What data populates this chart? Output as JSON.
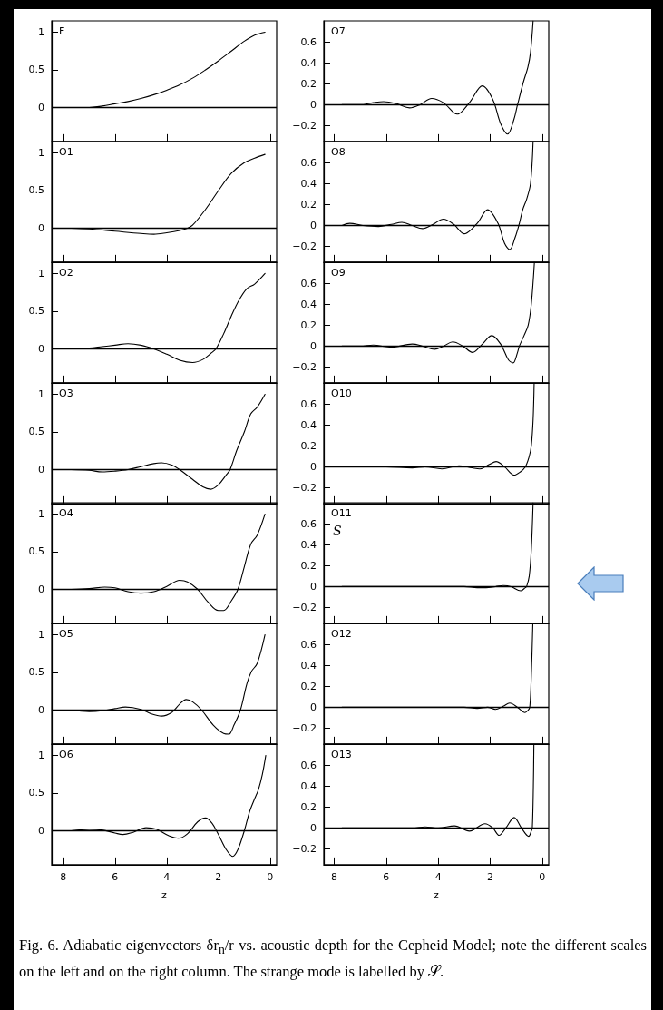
{
  "chart_data": [
    {
      "type": "line",
      "title": "F",
      "xlim": [
        8.45,
        -0.25
      ],
      "xticks": [
        8,
        6,
        4,
        2,
        0
      ],
      "ylim": [
        -0.45,
        1.15
      ],
      "yticks": [
        0,
        0.5,
        1
      ],
      "tick_labels": "y",
      "marker": "none",
      "line_style": "solid",
      "ref_lines": [
        {
          "axis": "y",
          "value": 0,
          "color": "#000000"
        }
      ],
      "series": [
        {
          "color": "#000000",
          "x": [
            7.7,
            7,
            6.5,
            6,
            5.5,
            5,
            4.5,
            4,
            3.5,
            3,
            2.5,
            2,
            1.5,
            1,
            0.6,
            0.2
          ],
          "values": [
            0,
            0,
            0.02,
            0.05,
            0.08,
            0.12,
            0.17,
            0.23,
            0.3,
            0.39,
            0.5,
            0.62,
            0.75,
            0.88,
            0.96,
            1.0
          ]
        }
      ]
    },
    {
      "type": "line",
      "title": "O1",
      "xlim": [
        8.45,
        -0.25
      ],
      "xticks": [
        8,
        6,
        4,
        2,
        0
      ],
      "ylim": [
        -0.45,
        1.15
      ],
      "yticks": [
        0,
        0.5,
        1
      ],
      "tick_labels": "y",
      "marker": "none",
      "line_style": "solid",
      "ref_lines": [
        {
          "axis": "y",
          "value": 0,
          "color": "#000000"
        }
      ],
      "series": [
        {
          "color": "#000000",
          "x": [
            7.7,
            7,
            6,
            5,
            4.5,
            4,
            3.5,
            3.2,
            3,
            2.5,
            2,
            1.5,
            1,
            0.6,
            0.2
          ],
          "values": [
            0,
            -0.01,
            -0.04,
            -0.07,
            -0.08,
            -0.06,
            -0.03,
            0,
            0.04,
            0.25,
            0.5,
            0.73,
            0.87,
            0.93,
            0.98
          ]
        }
      ]
    },
    {
      "type": "line",
      "title": "O2",
      "xlim": [
        8.45,
        -0.25
      ],
      "xticks": [
        8,
        6,
        4,
        2,
        0
      ],
      "ylim": [
        -0.45,
        1.15
      ],
      "yticks": [
        0,
        0.5,
        1
      ],
      "tick_labels": "y",
      "marker": "none",
      "line_style": "solid",
      "ref_lines": [
        {
          "axis": "y",
          "value": 0,
          "color": "#000000"
        }
      ],
      "series": [
        {
          "color": "#000000",
          "x": [
            7.7,
            7,
            6.5,
            6,
            5.5,
            5,
            4.5,
            4,
            3.5,
            3,
            2.6,
            2.3,
            2.1,
            1.8,
            1.5,
            1.2,
            0.9,
            0.6,
            0.2
          ],
          "values": [
            0,
            0.01,
            0.03,
            0.05,
            0.07,
            0.05,
            0,
            -0.07,
            -0.15,
            -0.18,
            -0.14,
            -0.06,
            0,
            0.2,
            0.44,
            0.65,
            0.8,
            0.86,
            1.0
          ]
        }
      ]
    },
    {
      "type": "line",
      "title": "O3",
      "xlim": [
        8.45,
        -0.25
      ],
      "xticks": [
        8,
        6,
        4,
        2,
        0
      ],
      "ylim": [
        -0.45,
        1.15
      ],
      "yticks": [
        0,
        0.5,
        1
      ],
      "tick_labels": "y",
      "marker": "none",
      "line_style": "solid",
      "ref_lines": [
        {
          "axis": "y",
          "value": 0,
          "color": "#000000"
        }
      ],
      "series": [
        {
          "color": "#000000",
          "x": [
            7.7,
            7,
            6.5,
            6,
            5.5,
            5,
            4.5,
            4.2,
            3.8,
            3.5,
            3,
            2.6,
            2.3,
            2,
            1.7,
            1.55,
            1.3,
            1,
            0.75,
            0.5,
            0.2
          ],
          "values": [
            0,
            -0.01,
            -0.03,
            -0.02,
            0,
            0.04,
            0.08,
            0.09,
            0.06,
            0,
            -0.13,
            -0.23,
            -0.26,
            -0.2,
            -0.07,
            0,
            0.25,
            0.5,
            0.74,
            0.83,
            1.0
          ]
        }
      ]
    },
    {
      "type": "line",
      "title": "O4",
      "xlim": [
        8.45,
        -0.25
      ],
      "xticks": [
        8,
        6,
        4,
        2,
        0
      ],
      "ylim": [
        -0.45,
        1.15
      ],
      "yticks": [
        0,
        0.5,
        1
      ],
      "tick_labels": "y",
      "marker": "none",
      "line_style": "solid",
      "ref_lines": [
        {
          "axis": "y",
          "value": 0,
          "color": "#000000"
        }
      ],
      "series": [
        {
          "color": "#000000",
          "x": [
            7.7,
            7,
            6.4,
            6,
            5.5,
            5,
            4.5,
            4,
            3.5,
            3.2,
            2.8,
            2.4,
            2,
            1.8,
            1.5,
            1.25,
            1,
            0.75,
            0.5,
            0.2
          ],
          "values": [
            0,
            0.01,
            0.03,
            0.02,
            -0.03,
            -0.05,
            -0.03,
            0.04,
            0.12,
            0.1,
            0,
            -0.17,
            -0.28,
            -0.28,
            -0.15,
            0,
            0.3,
            0.6,
            0.72,
            1.0
          ]
        }
      ]
    },
    {
      "type": "line",
      "title": "O5",
      "xlim": [
        8.45,
        -0.25
      ],
      "xticks": [
        8,
        6,
        4,
        2,
        0
      ],
      "ylim": [
        -0.45,
        1.15
      ],
      "yticks": [
        0,
        0.5,
        1
      ],
      "tick_labels": "y",
      "marker": "none",
      "line_style": "solid",
      "ref_lines": [
        {
          "axis": "y",
          "value": 0,
          "color": "#000000"
        }
      ],
      "series": [
        {
          "color": "#000000",
          "x": [
            7.7,
            7,
            6.5,
            6,
            5.6,
            5,
            4.6,
            4.2,
            3.8,
            3.5,
            3.25,
            3,
            2.65,
            2.2,
            1.8,
            1.6,
            1.4,
            1.15,
            0.9,
            0.73,
            0.5,
            0.2
          ],
          "values": [
            0,
            -0.02,
            -0.01,
            0.02,
            0.04,
            0.01,
            -0.05,
            -0.08,
            -0.03,
            0.08,
            0.14,
            0.11,
            0,
            -0.2,
            -0.31,
            -0.32,
            -0.2,
            0,
            0.35,
            0.51,
            0.62,
            1.0
          ]
        }
      ]
    },
    {
      "type": "line",
      "title": "O6",
      "xlabel": "z",
      "xlim": [
        8.45,
        -0.25
      ],
      "xticks": [
        8,
        6,
        4,
        2,
        0
      ],
      "ylim": [
        -0.45,
        1.15
      ],
      "yticks": [
        0,
        0.5,
        1
      ],
      "marker": "none",
      "line_style": "solid",
      "ref_lines": [
        {
          "axis": "y",
          "value": 0,
          "color": "#000000"
        }
      ],
      "series": [
        {
          "color": "#000000",
          "x": [
            7.7,
            7,
            6.5,
            6,
            5.7,
            5.3,
            4.8,
            4.4,
            3.9,
            3.55,
            3.2,
            2.8,
            2.5,
            2.25,
            2,
            1.7,
            1.45,
            1.25,
            1,
            0.8,
            0.63,
            0.45,
            0.3,
            0.17
          ],
          "values": [
            0,
            0.02,
            0.01,
            -0.03,
            -0.05,
            -0.02,
            0.04,
            0.02,
            -0.07,
            -0.1,
            -0.04,
            0.12,
            0.17,
            0.1,
            -0.05,
            -0.25,
            -0.34,
            -0.25,
            0,
            0.25,
            0.4,
            0.55,
            0.75,
            1.0
          ]
        }
      ]
    },
    {
      "type": "line",
      "title": "O7",
      "xlim": [
        8.4,
        -0.25
      ],
      "xticks": [
        8,
        6,
        4,
        2,
        0
      ],
      "ylim": [
        -0.35,
        0.8
      ],
      "yticks": [
        -0.2,
        0,
        0.2,
        0.4,
        0.6
      ],
      "tick_labels": "y",
      "marker": "none",
      "line_style": "solid",
      "ref_lines": [
        {
          "axis": "y",
          "value": 0,
          "color": "#000000"
        }
      ],
      "series": [
        {
          "color": "#000000",
          "x": [
            7.7,
            7,
            6.5,
            6.1,
            5.6,
            5.1,
            4.7,
            4.25,
            3.8,
            3.27,
            2.8,
            2.3,
            1.9,
            1.6,
            1.33,
            1.1,
            0.95,
            0.72,
            0.55,
            0.45,
            0.35
          ],
          "values": [
            0,
            0,
            0.02,
            0.03,
            0.01,
            -0.03,
            0,
            0.06,
            0.02,
            -0.09,
            0.02,
            0.18,
            0.05,
            -0.18,
            -0.28,
            -0.15,
            0,
            0.22,
            0.36,
            0.5,
            0.8
          ]
        }
      ]
    },
    {
      "type": "line",
      "title": "O8",
      "xlim": [
        8.4,
        -0.25
      ],
      "xticks": [
        8,
        6,
        4,
        2,
        0
      ],
      "ylim": [
        -0.35,
        0.8
      ],
      "yticks": [
        -0.2,
        0,
        0.2,
        0.4,
        0.6
      ],
      "tick_labels": "y",
      "marker": "none",
      "line_style": "solid",
      "ref_lines": [
        {
          "axis": "y",
          "value": 0,
          "color": "#000000"
        }
      ],
      "series": [
        {
          "color": "#000000",
          "x": [
            7.7,
            7.4,
            6.9,
            6.3,
            5.8,
            5.4,
            5,
            4.6,
            4.2,
            3.8,
            3.4,
            3,
            2.5,
            2.1,
            1.7,
            1.45,
            1.25,
            1.05,
            0.9,
            0.75,
            0.6,
            0.45,
            0.35
          ],
          "values": [
            0,
            0.02,
            0,
            -0.01,
            0.01,
            0.03,
            0,
            -0.03,
            0.01,
            0.06,
            0.01,
            -0.08,
            0.02,
            0.15,
            0.02,
            -0.17,
            -0.23,
            -0.12,
            0,
            0.15,
            0.25,
            0.4,
            0.8
          ]
        }
      ]
    },
    {
      "type": "line",
      "title": "O9",
      "xlim": [
        8.4,
        -0.25
      ],
      "xticks": [
        8,
        6,
        4,
        2,
        0
      ],
      "ylim": [
        -0.35,
        0.8
      ],
      "yticks": [
        -0.2,
        0,
        0.2,
        0.4,
        0.6
      ],
      "tick_labels": "y",
      "marker": "none",
      "line_style": "solid",
      "ref_lines": [
        {
          "axis": "y",
          "value": 0,
          "color": "#000000"
        }
      ],
      "series": [
        {
          "color": "#000000",
          "x": [
            7.7,
            7,
            6.5,
            5.8,
            5,
            4.6,
            4.14,
            3.8,
            3.44,
            3.05,
            2.68,
            2.3,
            1.94,
            1.6,
            1.3,
            1.12,
            0.95,
            0.88,
            0.7,
            0.54,
            0.42,
            0.3
          ],
          "values": [
            0,
            0,
            0.01,
            -0.01,
            0.02,
            0,
            -0.03,
            0,
            0.04,
            0,
            -0.06,
            0.02,
            0.1,
            0.02,
            -0.13,
            -0.16,
            -0.06,
            0,
            0.1,
            0.2,
            0.4,
            0.8
          ]
        }
      ]
    },
    {
      "type": "line",
      "title": "O10",
      "xlim": [
        8.4,
        -0.25
      ],
      "xticks": [
        8,
        6,
        4,
        2,
        0
      ],
      "ylim": [
        -0.35,
        0.8
      ],
      "yticks": [
        -0.2,
        0,
        0.2,
        0.4,
        0.6
      ],
      "tick_labels": "y",
      "marker": "none",
      "line_style": "solid",
      "ref_lines": [
        {
          "axis": "y",
          "value": 0,
          "color": "#000000"
        }
      ],
      "series": [
        {
          "color": "#000000",
          "x": [
            7.7,
            6,
            5,
            4.5,
            3.86,
            3.2,
            2.7,
            2.4,
            2.05,
            1.77,
            1.45,
            1.08,
            0.85,
            0.65,
            0.5,
            0.42,
            0.35,
            0.31
          ],
          "values": [
            0,
            0,
            -0.01,
            0,
            -0.02,
            0.01,
            -0.01,
            -0.02,
            0.02,
            0.05,
            0,
            -0.08,
            -0.05,
            0,
            0.1,
            0.2,
            0.45,
            0.8
          ]
        }
      ]
    },
    {
      "type": "line",
      "title": "O11",
      "annotations": [
        "S"
      ],
      "xlim": [
        8.4,
        -0.25
      ],
      "xticks": [
        8,
        6,
        4,
        2,
        0
      ],
      "ylim": [
        -0.35,
        0.8
      ],
      "yticks": [
        -0.2,
        0,
        0.2,
        0.4,
        0.6
      ],
      "tick_labels": "y",
      "marker": "none",
      "line_style": "solid",
      "ref_lines": [
        {
          "axis": "y",
          "value": 0,
          "color": "#000000"
        }
      ],
      "series": [
        {
          "color": "#000000",
          "x": [
            7.7,
            5,
            3,
            2.5,
            2.16,
            1.8,
            1.5,
            1.2,
            0.83,
            0.65,
            0.6,
            0.5,
            0.42,
            0.35
          ],
          "values": [
            0,
            0,
            0,
            -0.01,
            -0.01,
            0,
            0.01,
            0,
            -0.04,
            -0.01,
            0,
            0.1,
            0.35,
            0.8
          ]
        }
      ]
    },
    {
      "type": "line",
      "title": "O12",
      "xlim": [
        8.4,
        -0.25
      ],
      "xticks": [
        8,
        6,
        4,
        2,
        0
      ],
      "ylim": [
        -0.35,
        0.8
      ],
      "yticks": [
        -0.2,
        0,
        0.2,
        0.4,
        0.6
      ],
      "tick_labels": "y",
      "marker": "none",
      "line_style": "solid",
      "ref_lines": [
        {
          "axis": "y",
          "value": 0,
          "color": "#000000"
        }
      ],
      "series": [
        {
          "color": "#000000",
          "x": [
            7.7,
            5,
            3,
            2.5,
            2.1,
            1.8,
            1.5,
            1.25,
            0.95,
            0.66,
            0.55,
            0.48,
            0.42,
            0.36
          ],
          "values": [
            0,
            0,
            0,
            -0.01,
            0,
            -0.02,
            0.01,
            0.04,
            0,
            -0.05,
            -0.03,
            0,
            0.3,
            0.8
          ]
        }
      ]
    },
    {
      "type": "line",
      "title": "O13",
      "xlabel": "z",
      "annotations": [
        "Fig. 6. Adiabatic eigenvectors δr$_{n}$/r vs. acoustic depth for the Cepheid Model; note the different scales on the left and on the right column. The strange mode is labelled by 𝒮."
      ],
      "xlim": [
        8.4,
        -0.25
      ],
      "xticks": [
        8,
        6,
        4,
        2,
        0
      ],
      "ylim": [
        -0.35,
        0.8
      ],
      "yticks": [
        -0.2,
        0,
        0.2,
        0.4,
        0.6
      ],
      "marker": "none",
      "line_style": "solid",
      "ref_lines": [
        {
          "axis": "y",
          "value": 0,
          "color": "#000000"
        }
      ],
      "series": [
        {
          "color": "#000000",
          "x": [
            7.7,
            6,
            5,
            4.5,
            4,
            3.37,
            2.8,
            2.2,
            1.9,
            1.66,
            1.4,
            1.08,
            0.8,
            0.52,
            0.42,
            0.38,
            0.34,
            0.32
          ],
          "values": [
            0,
            0,
            0,
            0.01,
            0,
            0.02,
            -0.03,
            0.04,
            0,
            -0.07,
            0,
            0.1,
            0,
            -0.08,
            -0.03,
            0,
            0.4,
            0.8
          ]
        }
      ]
    }
  ]
}
